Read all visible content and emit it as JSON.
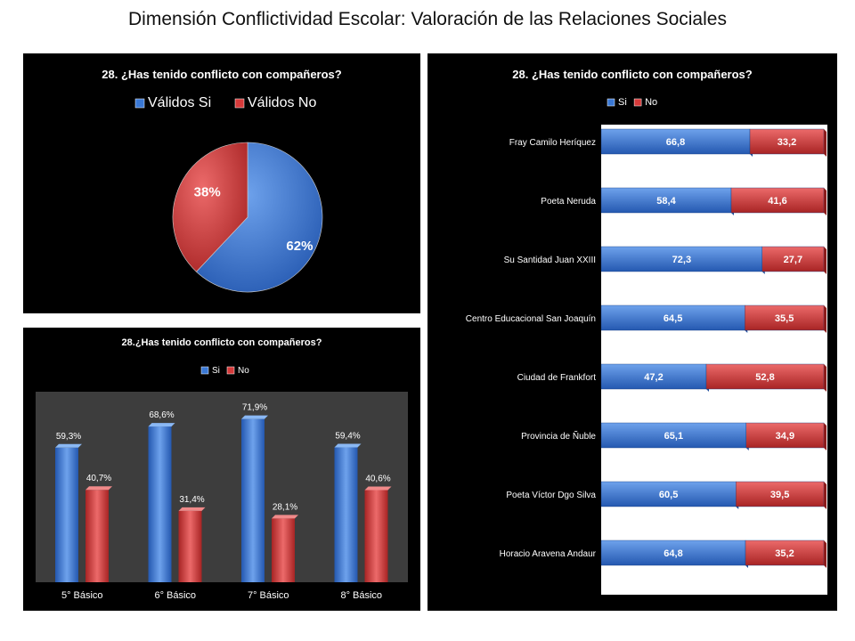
{
  "page": {
    "title": "Dimensión Conflictividad Escolar: Valoración de las Relaciones Sociales"
  },
  "colors": {
    "si": "#3a78d4",
    "no": "#d63a3a",
    "panel_bg": "#000000",
    "plot_bg": "#3d3d3d",
    "bar_plot_bg": "#ffffff"
  },
  "chart_data": [
    {
      "type": "pie",
      "title": "28. ¿Has tenido conflicto con compañeros?",
      "legend_position": "top",
      "categories": [
        "Válidos Si",
        "Válidos No"
      ],
      "values": [
        62,
        38
      ],
      "data_labels": [
        "62%",
        "38%"
      ]
    },
    {
      "type": "bar",
      "title": "28.¿Has tenido conflicto con compañeros?",
      "legend_position": "top",
      "categories": [
        "5° Básico",
        "6° Básico",
        "7° Básico",
        "8° Básico"
      ],
      "ylim": [
        0,
        80
      ],
      "grid": false,
      "series": [
        {
          "name": "Si",
          "values": [
            59.3,
            68.6,
            71.9,
            59.4
          ],
          "labels": [
            "59,3%",
            "68,6%",
            "71,9%",
            "59,4%"
          ]
        },
        {
          "name": "No",
          "values": [
            40.7,
            31.4,
            28.1,
            40.6
          ],
          "labels": [
            "40,7%",
            "31,4%",
            "28,1%",
            "40,6%"
          ]
        }
      ]
    },
    {
      "type": "bar",
      "orientation": "horizontal",
      "stacked": true,
      "title": "28. ¿Has tenido conflicto con compañeros?",
      "legend_position": "top-left",
      "categories": [
        "Fray Camilo Heríquez",
        "Poeta Neruda",
        "Su Santidad Juan XXIII",
        "Centro Educacional San Joaquín",
        "Ciudad de Frankfort",
        "Provincia de Ñuble",
        "Poeta Víctor Dgo Silva",
        "Horacio Aravena Andaur"
      ],
      "xlim": [
        0,
        100
      ],
      "grid": false,
      "series": [
        {
          "name": "Si",
          "values": [
            66.8,
            58.4,
            72.3,
            64.5,
            47.2,
            65.1,
            60.5,
            64.8
          ],
          "labels": [
            "66,8",
            "58,4",
            "72,3",
            "64,5",
            "47,2",
            "65,1",
            "60,5",
            "64,8"
          ]
        },
        {
          "name": "No",
          "values": [
            33.2,
            41.6,
            27.7,
            35.5,
            52.8,
            34.9,
            39.5,
            35.2
          ],
          "labels": [
            "33,2",
            "41,6",
            "27,7",
            "35,5",
            "52,8",
            "34,9",
            "39,5",
            "35,2"
          ]
        }
      ]
    }
  ]
}
